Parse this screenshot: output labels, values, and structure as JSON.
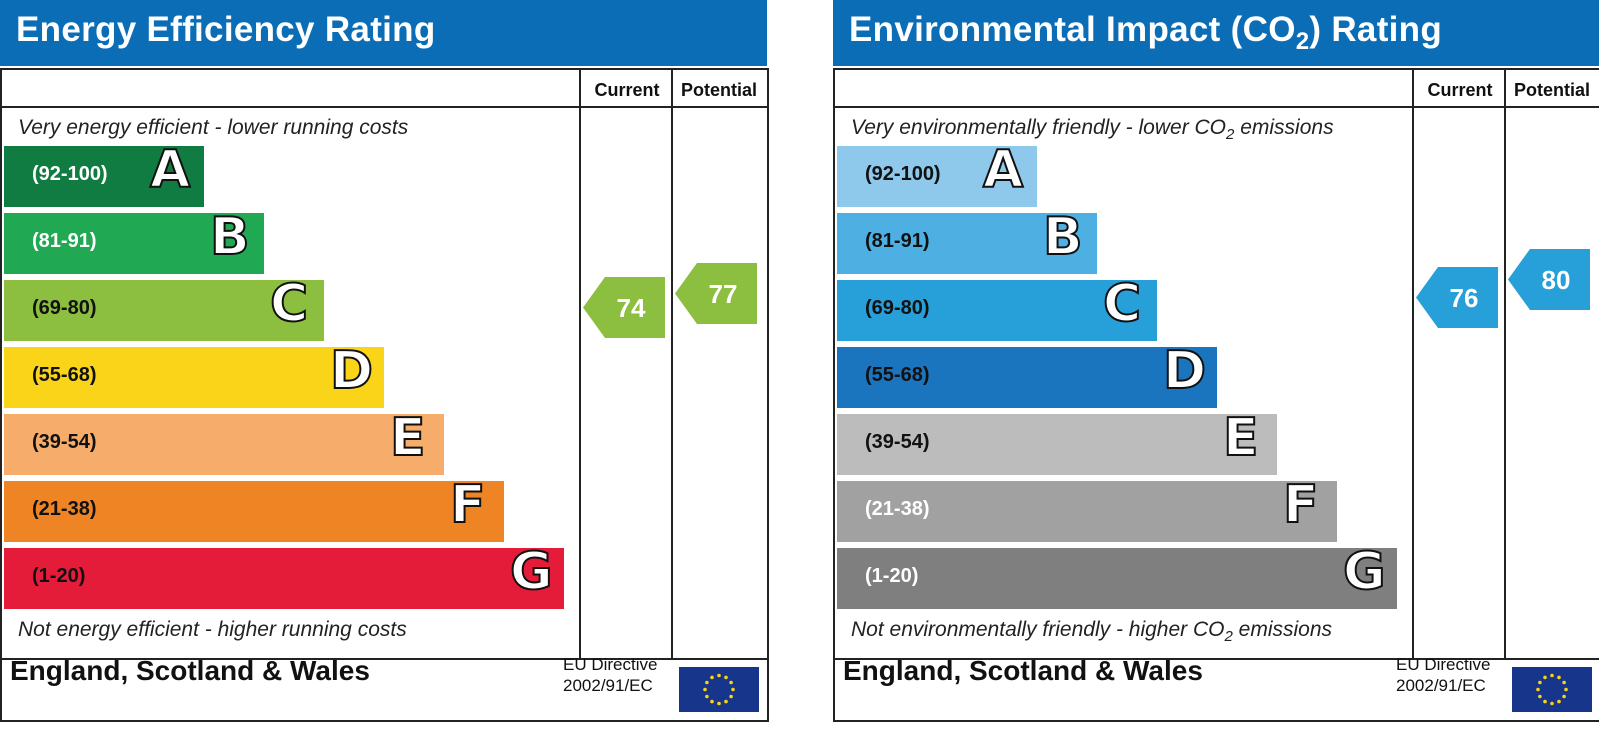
{
  "chart_data": [
    {
      "type": "bar",
      "title": "Energy Efficiency Rating",
      "top_caption": "Very energy efficient - lower running costs",
      "bottom_caption": "Not energy efficient - higher running costs",
      "columns": [
        "Current",
        "Potential"
      ],
      "bands": [
        {
          "range": "(92-100)",
          "letter": "A",
          "color": "#107c41",
          "text_color": "#ffffff"
        },
        {
          "range": "(81-91)",
          "letter": "B",
          "color": "#21a853",
          "text_color": "#ffffff"
        },
        {
          "range": "(69-80)",
          "letter": "C",
          "color": "#8cbe40",
          "text_color": "#111111"
        },
        {
          "range": "(55-68)",
          "letter": "D",
          "color": "#fad418",
          "text_color": "#111111"
        },
        {
          "range": "(39-54)",
          "letter": "E",
          "color": "#f6ad6b",
          "text_color": "#111111"
        },
        {
          "range": "(21-38)",
          "letter": "F",
          "color": "#ee8424",
          "text_color": "#111111"
        },
        {
          "range": "(1-20)",
          "letter": "G",
          "color": "#e41c3a",
          "text_color": "#111111"
        }
      ],
      "current": {
        "value": 74,
        "color": "#8cbe40"
      },
      "potential": {
        "value": 77,
        "color": "#8cbe40"
      },
      "footer": "England, Scotland & Wales",
      "directive": [
        "EU Directive",
        "2002/91/EC"
      ]
    },
    {
      "type": "bar",
      "title": "Environmental Impact (CO2) Rating",
      "top_caption": "Very environmentally friendly - lower CO2 emissions",
      "bottom_caption": "Not environmentally friendly - higher CO2 emissions",
      "columns": [
        "Current",
        "Potential"
      ],
      "bands": [
        {
          "range": "(92-100)",
          "letter": "A",
          "color": "#8ec9ec",
          "text_color": "#111111"
        },
        {
          "range": "(81-91)",
          "letter": "B",
          "color": "#4eb0e2",
          "text_color": "#111111"
        },
        {
          "range": "(69-80)",
          "letter": "C",
          "color": "#279fd8",
          "text_color": "#111111"
        },
        {
          "range": "(55-68)",
          "letter": "D",
          "color": "#1b74be",
          "text_color": "#111111"
        },
        {
          "range": "(39-54)",
          "letter": "E",
          "color": "#bdbcbc",
          "text_color": "#111111"
        },
        {
          "range": "(21-38)",
          "letter": "F",
          "color": "#a1a1a1",
          "text_color": "#ffffff"
        },
        {
          "range": "(1-20)",
          "letter": "G",
          "color": "#7f7f7f",
          "text_color": "#ffffff"
        }
      ],
      "current": {
        "value": 76,
        "color": "#279fd8"
      },
      "potential": {
        "value": 80,
        "color": "#279fd8"
      },
      "footer": "England, Scotland & Wales",
      "directive": [
        "EU Directive",
        "2002/91/EC"
      ]
    }
  ]
}
